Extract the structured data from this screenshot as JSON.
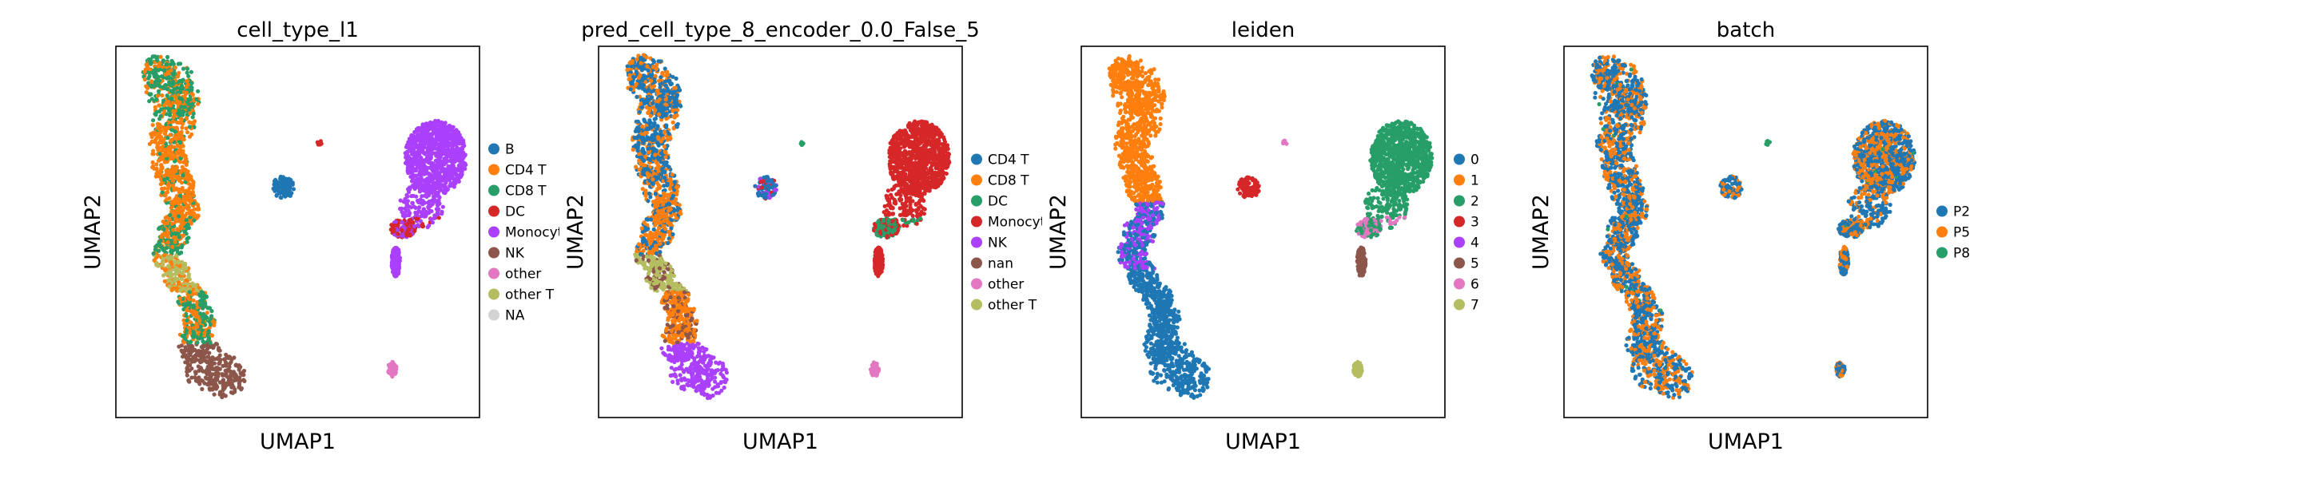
{
  "figure": {
    "palette": {
      "c0": "#1f77b4",
      "c1": "#ff7f0e",
      "c2": "#279e68",
      "c3": "#d62728",
      "c4": "#aa40fc",
      "c5": "#8c564b",
      "c6": "#e377c2",
      "c7": "#b5bd61",
      "na": "#d3d3d3",
      "frame": "#000000"
    }
  },
  "chart_data": [
    {
      "type": "scatter",
      "title": "cell_type_l1",
      "xlabel": "UMAP1",
      "ylabel": "UMAP2",
      "grid": false,
      "legend_placement": "right",
      "legend": [
        {
          "label": "B",
          "color": "#1f77b4"
        },
        {
          "label": "CD4 T",
          "color": "#ff7f0e"
        },
        {
          "label": "CD8 T",
          "color": "#279e68"
        },
        {
          "label": "DC",
          "color": "#d62728"
        },
        {
          "label": "Monocytes",
          "color": "#aa40fc"
        },
        {
          "label": "NK",
          "color": "#8c564b"
        },
        {
          "label": "other",
          "color": "#e377c2"
        },
        {
          "label": "other T",
          "color": "#b5bd61"
        },
        {
          "label": "NA",
          "color": "#d3d3d3"
        }
      ]
    },
    {
      "type": "scatter",
      "title": "pred_cell_type_8_encoder_0.0_False_5",
      "xlabel": "UMAP1",
      "ylabel": "UMAP2",
      "grid": false,
      "legend_placement": "right",
      "legend": [
        {
          "label": "CD4 T",
          "color": "#1f77b4"
        },
        {
          "label": "CD8 T",
          "color": "#ff7f0e"
        },
        {
          "label": "DC",
          "color": "#279e68"
        },
        {
          "label": "Monocytes",
          "color": "#d62728"
        },
        {
          "label": "NK",
          "color": "#aa40fc"
        },
        {
          "label": "nan",
          "color": "#8c564b"
        },
        {
          "label": "other",
          "color": "#e377c2"
        },
        {
          "label": "other T",
          "color": "#b5bd61"
        }
      ]
    },
    {
      "type": "scatter",
      "title": "leiden",
      "xlabel": "UMAP1",
      "ylabel": "UMAP2",
      "grid": false,
      "legend_placement": "right",
      "legend": [
        {
          "label": "0",
          "color": "#1f77b4"
        },
        {
          "label": "1",
          "color": "#ff7f0e"
        },
        {
          "label": "2",
          "color": "#279e68"
        },
        {
          "label": "3",
          "color": "#d62728"
        },
        {
          "label": "4",
          "color": "#aa40fc"
        },
        {
          "label": "5",
          "color": "#8c564b"
        },
        {
          "label": "6",
          "color": "#e377c2"
        },
        {
          "label": "7",
          "color": "#b5bd61"
        }
      ]
    },
    {
      "type": "scatter",
      "title": "batch",
      "xlabel": "UMAP1",
      "ylabel": "UMAP2",
      "grid": false,
      "legend_placement": "right",
      "legend": [
        {
          "label": "P2",
          "color": "#1f77b4"
        },
        {
          "label": "P5",
          "color": "#ff7f0e"
        },
        {
          "label": "P8",
          "color": "#279e68"
        }
      ]
    }
  ]
}
